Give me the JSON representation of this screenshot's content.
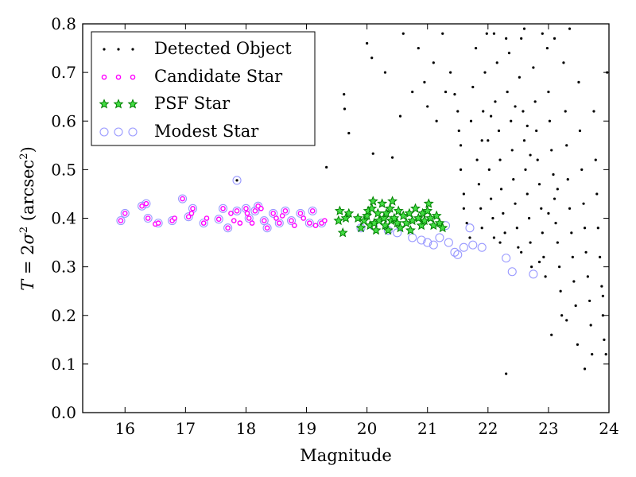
{
  "chart_data": {
    "type": "scatter",
    "xlabel": "Magnitude",
    "ylabel_parts": {
      "var": "T",
      "eq": " = 2",
      "sigma": "σ",
      "sup": "2",
      "unit_open": " (arcsec",
      "unit_sup": "2",
      "unit_close": ")"
    },
    "xlim": [
      15.3,
      24.0
    ],
    "ylim": [
      0.0,
      0.8
    ],
    "xticks": [
      16,
      17,
      18,
      19,
      20,
      21,
      22,
      23,
      24
    ],
    "yticks": [
      0.0,
      0.1,
      0.2,
      0.3,
      0.4,
      0.5,
      0.6,
      0.7,
      0.8
    ],
    "xtick_labels": [
      "16",
      "17",
      "18",
      "19",
      "20",
      "21",
      "22",
      "23",
      "24"
    ],
    "ytick_labels": [
      "0.0",
      "0.1",
      "0.2",
      "0.3",
      "0.4",
      "0.5",
      "0.6",
      "0.7",
      "0.8"
    ],
    "grid": false,
    "legend_position": "top-left",
    "series": [
      {
        "name": "Detected Object",
        "marker": "dot",
        "color": "#000000",
        "points_note": "dense cloud",
        "points": [
          [
            17.85,
            0.478
          ],
          [
            19.33,
            0.505
          ],
          [
            19.62,
            0.655
          ],
          [
            19.63,
            0.625
          ],
          [
            19.7,
            0.575
          ],
          [
            20.1,
            0.533
          ],
          [
            20.42,
            0.525
          ],
          [
            20.0,
            0.76
          ],
          [
            20.08,
            0.73
          ],
          [
            20.3,
            0.7
          ],
          [
            20.6,
            0.78
          ],
          [
            20.85,
            0.75
          ],
          [
            20.95,
            0.68
          ],
          [
            21.1,
            0.72
          ],
          [
            21.25,
            0.78
          ],
          [
            21.38,
            0.7
          ],
          [
            21.45,
            0.655
          ],
          [
            21.5,
            0.62
          ],
          [
            21.52,
            0.58
          ],
          [
            21.55,
            0.55
          ],
          [
            21.55,
            0.5
          ],
          [
            21.6,
            0.45
          ],
          [
            21.6,
            0.42
          ],
          [
            21.65,
            0.39
          ],
          [
            21.7,
            0.36
          ],
          [
            21.72,
            0.6
          ],
          [
            21.75,
            0.67
          ],
          [
            21.8,
            0.75
          ],
          [
            21.82,
            0.52
          ],
          [
            21.85,
            0.47
          ],
          [
            21.88,
            0.42
          ],
          [
            21.9,
            0.38
          ],
          [
            21.92,
            0.62
          ],
          [
            21.95,
            0.7
          ],
          [
            21.98,
            0.78
          ],
          [
            22.0,
            0.56
          ],
          [
            22.02,
            0.5
          ],
          [
            22.05,
            0.44
          ],
          [
            22.08,
            0.4
          ],
          [
            22.1,
            0.36
          ],
          [
            22.12,
            0.64
          ],
          [
            22.15,
            0.72
          ],
          [
            22.18,
            0.58
          ],
          [
            22.2,
            0.52
          ],
          [
            22.22,
            0.46
          ],
          [
            22.25,
            0.41
          ],
          [
            22.28,
            0.37
          ],
          [
            22.3,
            0.08
          ],
          [
            22.32,
            0.66
          ],
          [
            22.35,
            0.74
          ],
          [
            22.38,
            0.6
          ],
          [
            22.4,
            0.54
          ],
          [
            22.42,
            0.48
          ],
          [
            22.45,
            0.43
          ],
          [
            22.48,
            0.38
          ],
          [
            22.5,
            0.34
          ],
          [
            22.52,
            0.69
          ],
          [
            22.55,
            0.77
          ],
          [
            22.58,
            0.62
          ],
          [
            22.6,
            0.56
          ],
          [
            22.62,
            0.5
          ],
          [
            22.65,
            0.45
          ],
          [
            22.68,
            0.4
          ],
          [
            22.7,
            0.35
          ],
          [
            22.72,
            0.3
          ],
          [
            22.75,
            0.71
          ],
          [
            22.78,
            0.64
          ],
          [
            22.8,
            0.58
          ],
          [
            22.82,
            0.52
          ],
          [
            22.85,
            0.47
          ],
          [
            22.88,
            0.42
          ],
          [
            22.9,
            0.37
          ],
          [
            22.92,
            0.32
          ],
          [
            22.95,
            0.28
          ],
          [
            22.98,
            0.75
          ],
          [
            23.0,
            0.66
          ],
          [
            23.02,
            0.6
          ],
          [
            23.05,
            0.54
          ],
          [
            23.08,
            0.49
          ],
          [
            23.1,
            0.44
          ],
          [
            23.12,
            0.39
          ],
          [
            23.15,
            0.35
          ],
          [
            23.18,
            0.3
          ],
          [
            23.2,
            0.25
          ],
          [
            23.22,
            0.2
          ],
          [
            23.25,
            0.72
          ],
          [
            23.28,
            0.62
          ],
          [
            23.3,
            0.55
          ],
          [
            23.32,
            0.48
          ],
          [
            23.35,
            0.42
          ],
          [
            23.38,
            0.37
          ],
          [
            23.4,
            0.32
          ],
          [
            23.42,
            0.27
          ],
          [
            23.45,
            0.22
          ],
          [
            23.48,
            0.14
          ],
          [
            23.5,
            0.68
          ],
          [
            23.52,
            0.58
          ],
          [
            23.55,
            0.5
          ],
          [
            23.58,
            0.43
          ],
          [
            23.6,
            0.38
          ],
          [
            23.62,
            0.33
          ],
          [
            23.65,
            0.28
          ],
          [
            23.68,
            0.23
          ],
          [
            23.7,
            0.18
          ],
          [
            23.72,
            0.12
          ],
          [
            23.75,
            0.62
          ],
          [
            23.78,
            0.52
          ],
          [
            23.8,
            0.45
          ],
          [
            23.82,
            0.38
          ],
          [
            23.85,
            0.32
          ],
          [
            23.88,
            0.26
          ],
          [
            23.9,
            0.2
          ],
          [
            23.92,
            0.15
          ],
          [
            23.95,
            0.12
          ],
          [
            23.97,
            0.7
          ],
          [
            22.1,
            0.78
          ],
          [
            22.3,
            0.77
          ],
          [
            22.6,
            0.79
          ],
          [
            22.9,
            0.78
          ],
          [
            23.1,
            0.77
          ],
          [
            23.35,
            0.79
          ],
          [
            21.9,
            0.56
          ],
          [
            22.05,
            0.61
          ],
          [
            22.45,
            0.63
          ],
          [
            22.65,
            0.59
          ],
          [
            23.0,
            0.41
          ],
          [
            23.15,
            0.46
          ],
          [
            22.2,
            0.35
          ],
          [
            22.55,
            0.33
          ],
          [
            22.85,
            0.31
          ],
          [
            23.05,
            0.16
          ],
          [
            23.3,
            0.19
          ],
          [
            23.6,
            0.09
          ],
          [
            23.9,
            0.24
          ],
          [
            22.7,
            0.53
          ],
          [
            21.3,
            0.66
          ],
          [
            21.15,
            0.6
          ],
          [
            21.0,
            0.63
          ],
          [
            20.75,
            0.66
          ],
          [
            20.55,
            0.61
          ]
        ]
      },
      {
        "name": "Candidate Star",
        "marker": "circle-small",
        "color": "#ff00ff",
        "points": [
          [
            15.93,
            0.395
          ],
          [
            16.0,
            0.41
          ],
          [
            16.28,
            0.425
          ],
          [
            16.35,
            0.43
          ],
          [
            16.38,
            0.4
          ],
          [
            16.5,
            0.388
          ],
          [
            16.55,
            0.39
          ],
          [
            16.78,
            0.395
          ],
          [
            16.82,
            0.4
          ],
          [
            16.95,
            0.44
          ],
          [
            17.05,
            0.403
          ],
          [
            17.1,
            0.41
          ],
          [
            17.12,
            0.42
          ],
          [
            17.3,
            0.39
          ],
          [
            17.35,
            0.4
          ],
          [
            17.55,
            0.398
          ],
          [
            17.62,
            0.42
          ],
          [
            17.7,
            0.38
          ],
          [
            17.75,
            0.41
          ],
          [
            17.8,
            0.395
          ],
          [
            17.85,
            0.415
          ],
          [
            17.9,
            0.39
          ],
          [
            18.0,
            0.42
          ],
          [
            18.02,
            0.41
          ],
          [
            18.05,
            0.4
          ],
          [
            18.1,
            0.39
          ],
          [
            18.15,
            0.415
          ],
          [
            18.2,
            0.425
          ],
          [
            18.25,
            0.42
          ],
          [
            18.3,
            0.395
          ],
          [
            18.35,
            0.38
          ],
          [
            18.45,
            0.41
          ],
          [
            18.5,
            0.4
          ],
          [
            18.55,
            0.39
          ],
          [
            18.6,
            0.405
          ],
          [
            18.65,
            0.415
          ],
          [
            18.75,
            0.395
          ],
          [
            18.8,
            0.385
          ],
          [
            18.9,
            0.41
          ],
          [
            18.95,
            0.4
          ],
          [
            19.05,
            0.39
          ],
          [
            19.1,
            0.415
          ],
          [
            19.15,
            0.385
          ],
          [
            19.25,
            0.39
          ],
          [
            19.3,
            0.395
          ]
        ]
      },
      {
        "name": "PSF Star",
        "marker": "star",
        "color": "#008000",
        "points": [
          [
            19.53,
            0.395
          ],
          [
            19.55,
            0.415
          ],
          [
            19.6,
            0.37
          ],
          [
            19.65,
            0.4
          ],
          [
            19.7,
            0.41
          ],
          [
            19.85,
            0.4
          ],
          [
            19.9,
            0.38
          ],
          [
            19.95,
            0.395
          ],
          [
            20.0,
            0.405
          ],
          [
            20.02,
            0.415
          ],
          [
            20.05,
            0.385
          ],
          [
            20.08,
            0.42
          ],
          [
            20.1,
            0.435
          ],
          [
            20.12,
            0.39
          ],
          [
            20.15,
            0.375
          ],
          [
            20.18,
            0.41
          ],
          [
            20.2,
            0.395
          ],
          [
            20.25,
            0.43
          ],
          [
            20.28,
            0.4
          ],
          [
            20.3,
            0.385
          ],
          [
            20.32,
            0.41
          ],
          [
            20.35,
            0.375
          ],
          [
            20.38,
            0.42
          ],
          [
            20.4,
            0.395
          ],
          [
            20.42,
            0.435
          ],
          [
            20.45,
            0.4
          ],
          [
            20.5,
            0.39
          ],
          [
            20.52,
            0.415
          ],
          [
            20.55,
            0.38
          ],
          [
            20.6,
            0.405
          ],
          [
            20.65,
            0.39
          ],
          [
            20.7,
            0.41
          ],
          [
            20.72,
            0.375
          ],
          [
            20.75,
            0.395
          ],
          [
            20.8,
            0.42
          ],
          [
            20.85,
            0.4
          ],
          [
            20.9,
            0.385
          ],
          [
            20.92,
            0.41
          ],
          [
            20.95,
            0.395
          ],
          [
            21.0,
            0.415
          ],
          [
            21.02,
            0.43
          ],
          [
            21.05,
            0.4
          ],
          [
            21.1,
            0.385
          ],
          [
            21.15,
            0.405
          ],
          [
            21.2,
            0.39
          ],
          [
            21.25,
            0.38
          ]
        ]
      },
      {
        "name": "Modest Star",
        "marker": "circle-large",
        "color": "#9999ff",
        "points": [
          [
            15.93,
            0.395
          ],
          [
            16.0,
            0.41
          ],
          [
            16.28,
            0.425
          ],
          [
            16.35,
            0.43
          ],
          [
            16.38,
            0.4
          ],
          [
            16.55,
            0.39
          ],
          [
            16.78,
            0.395
          ],
          [
            16.95,
            0.44
          ],
          [
            17.05,
            0.403
          ],
          [
            17.12,
            0.42
          ],
          [
            17.3,
            0.39
          ],
          [
            17.55,
            0.398
          ],
          [
            17.62,
            0.42
          ],
          [
            17.7,
            0.38
          ],
          [
            17.85,
            0.415
          ],
          [
            17.85,
            0.478
          ],
          [
            18.0,
            0.42
          ],
          [
            18.05,
            0.4
          ],
          [
            18.15,
            0.415
          ],
          [
            18.2,
            0.425
          ],
          [
            18.3,
            0.395
          ],
          [
            18.35,
            0.38
          ],
          [
            18.45,
            0.41
          ],
          [
            18.55,
            0.39
          ],
          [
            18.65,
            0.415
          ],
          [
            18.75,
            0.395
          ],
          [
            18.9,
            0.41
          ],
          [
            19.05,
            0.39
          ],
          [
            19.1,
            0.415
          ],
          [
            19.25,
            0.39
          ],
          [
            19.9,
            0.38
          ],
          [
            20.1,
            0.385
          ],
          [
            20.35,
            0.375
          ],
          [
            20.5,
            0.37
          ],
          [
            20.75,
            0.36
          ],
          [
            20.9,
            0.355
          ],
          [
            21.0,
            0.35
          ],
          [
            21.1,
            0.345
          ],
          [
            21.2,
            0.36
          ],
          [
            21.35,
            0.35
          ],
          [
            21.45,
            0.33
          ],
          [
            21.5,
            0.325
          ],
          [
            21.6,
            0.34
          ],
          [
            21.75,
            0.345
          ],
          [
            21.9,
            0.34
          ],
          [
            22.3,
            0.318
          ],
          [
            22.4,
            0.29
          ],
          [
            22.75,
            0.285
          ],
          [
            21.7,
            0.38
          ],
          [
            21.3,
            0.385
          ]
        ]
      }
    ]
  }
}
